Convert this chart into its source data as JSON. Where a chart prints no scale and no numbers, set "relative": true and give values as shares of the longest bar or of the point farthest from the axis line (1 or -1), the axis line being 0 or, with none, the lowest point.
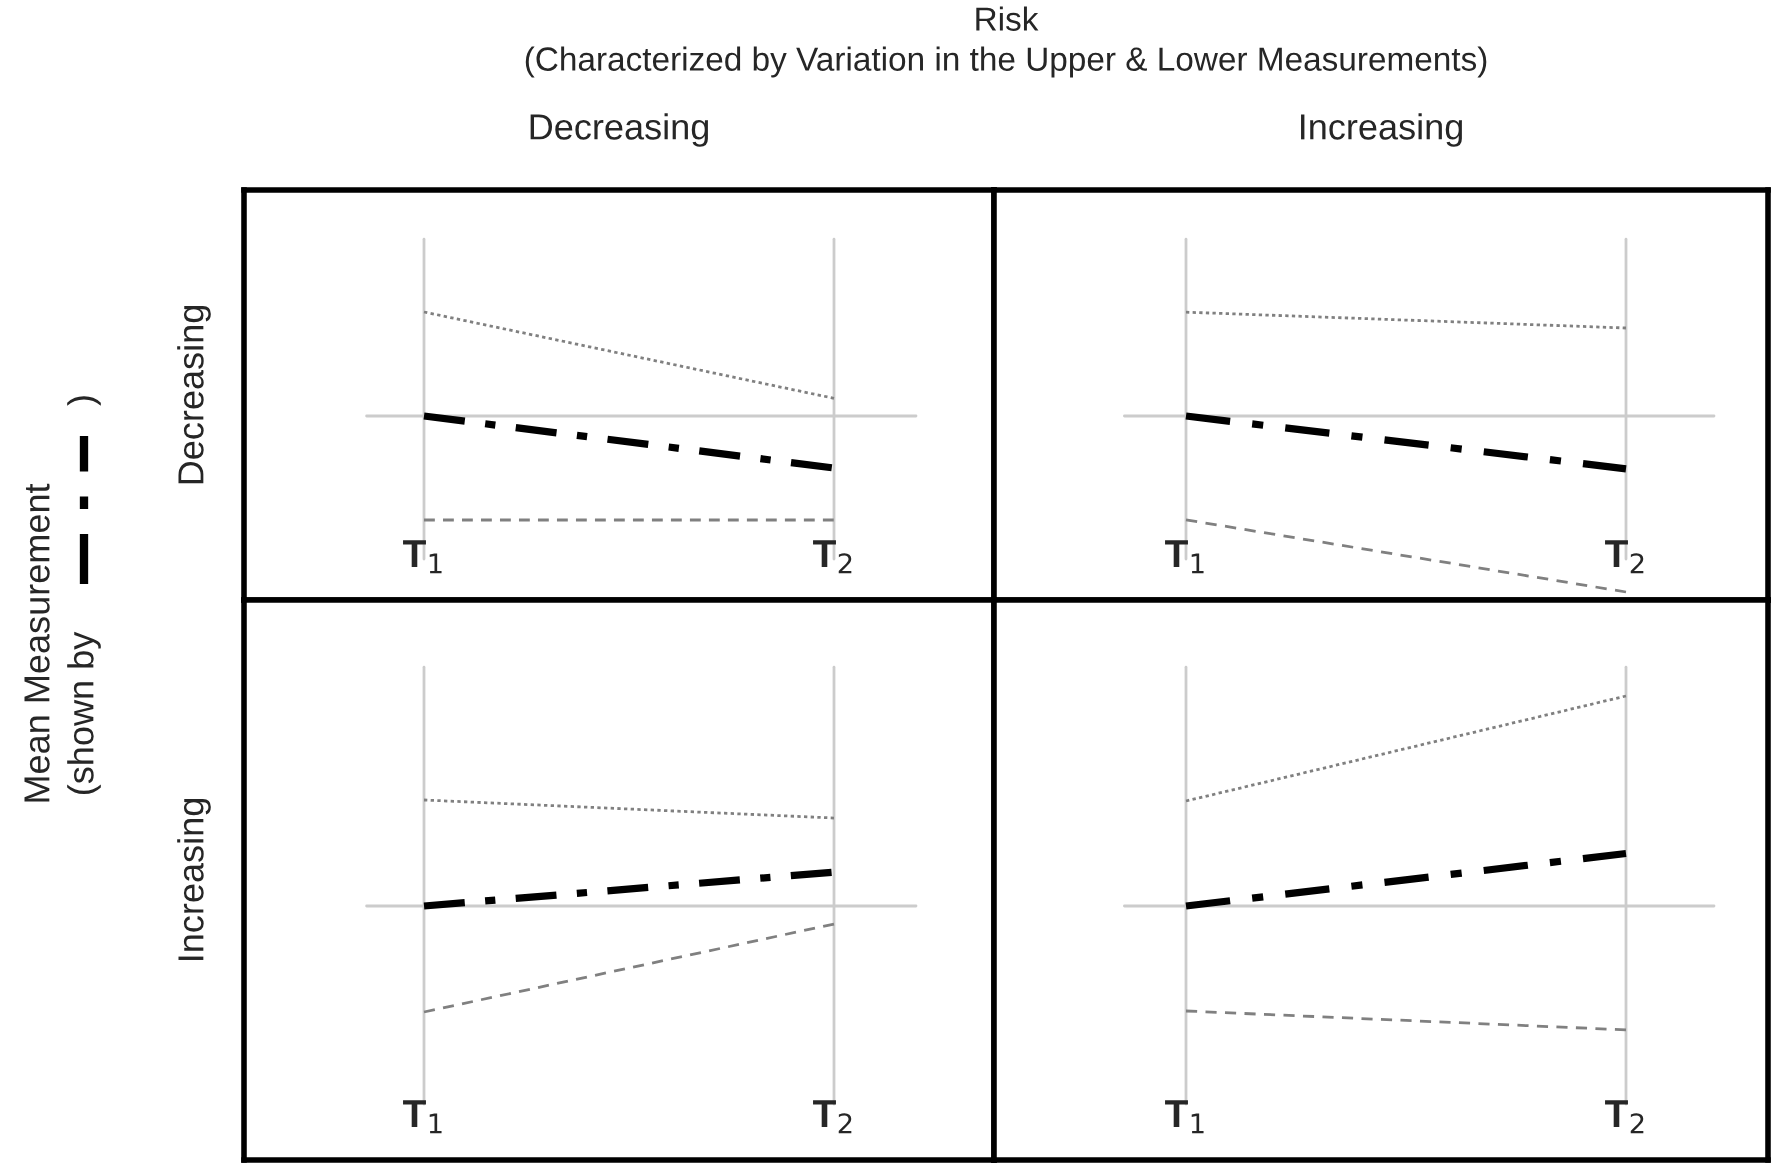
{
  "chart_data": [
    {
      "type": "line",
      "title": "Decreasing",
      "ylabel": "Decreasing",
      "categories": [
        "T$_{1}$",
        "T$_{2}$"
      ],
      "relative": true,
      "grid": "x",
      "tick_labels": "x",
      "annotations": [
        "Risk",
        "(Characterized by Variation in the Upper & Lower Measurements)",
        "Mean Measurement",
        "(shown by",
        ")"
      ],
      "series": [
        {
          "color": "#808080",
          "line_style": "dotted",
          "values": [
            1,
            0.17
          ]
        },
        {
          "color": "#000000",
          "line_style": "dashdot",
          "values": [
            0,
            -0.5
          ]
        },
        {
          "color": "#808080",
          "line_style": "dashed",
          "values": [
            -1,
            -1
          ]
        }
      ]
    },
    {
      "type": "line",
      "title": "Increasing",
      "categories": [
        "T$_{1}$",
        "T$_{2}$"
      ],
      "relative": true,
      "grid": "x",
      "tick_labels": "x",
      "series": [
        {
          "color": "#808080",
          "line_style": "dotted",
          "values": [
            0.59,
            0.5
          ]
        },
        {
          "color": "#000000",
          "line_style": "dashdot",
          "values": [
            0,
            -0.3
          ]
        },
        {
          "color": "#808080",
          "line_style": "dashed",
          "values": [
            -0.59,
            -1
          ]
        }
      ]
    },
    {
      "type": "line",
      "ylabel": "Increasing",
      "categories": [
        "T$_{1}$",
        "T$_{2}$"
      ],
      "relative": true,
      "grid": "x",
      "tick_labels": "x",
      "series": [
        {
          "color": "#808080",
          "line_style": "dotted",
          "values": [
            1,
            0.83
          ]
        },
        {
          "color": "#000000",
          "line_style": "dashdot",
          "values": [
            0,
            0.32
          ]
        },
        {
          "color": "#808080",
          "line_style": "dashed",
          "values": [
            -1,
            -0.17
          ]
        }
      ]
    },
    {
      "type": "line",
      "categories": [
        "T$_{1}$",
        "T$_{2}$"
      ],
      "relative": true,
      "grid": "x",
      "tick_labels": "x",
      "series": [
        {
          "color": "#808080",
          "line_style": "dotted",
          "values": [
            0.5,
            1
          ]
        },
        {
          "color": "#000000",
          "line_style": "dashdot",
          "values": [
            0,
            0.25
          ]
        },
        {
          "color": "#808080",
          "line_style": "dashed",
          "values": [
            -0.5,
            -0.59
          ]
        }
      ]
    }
  ]
}
